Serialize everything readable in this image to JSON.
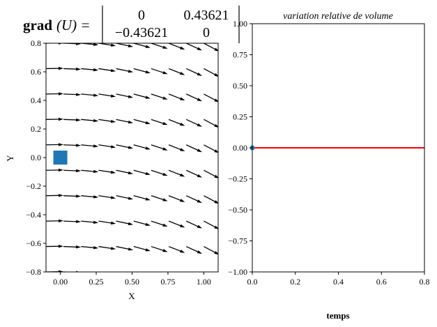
{
  "chart_data": [
    {
      "type": "quiver",
      "title": {
        "lhs_bold": "grad",
        "lhs_rest": "(U) =",
        "matrix": [
          [
            "0",
            "0.43621"
          ],
          [
            "−0.43621",
            "0"
          ]
        ]
      },
      "xlabel": "X",
      "ylabel": "Y",
      "xlim": [
        -0.1,
        1.1
      ],
      "ylim": [
        -0.8,
        0.8
      ],
      "xticks": [
        0.0,
        0.25,
        0.5,
        0.75,
        1.0
      ],
      "xtick_labels": [
        "0.00",
        "0.25",
        "0.50",
        "0.75",
        "1.00"
      ],
      "yticks": [
        -0.8,
        -0.6,
        -0.4,
        -0.2,
        0.0,
        0.2,
        0.4,
        0.6,
        0.8
      ],
      "ytick_labels": [
        "−0.8",
        "−0.6",
        "−0.4",
        "−0.2",
        "0.0",
        "0.2",
        "0.4",
        "0.6",
        "0.8"
      ],
      "grad_matrix": [
        [
          0,
          0.43621
        ],
        [
          -0.43621,
          0
        ]
      ],
      "marker": {
        "shape": "square",
        "x": 0.0,
        "y": 0.0,
        "color": "#1f77b4"
      },
      "arrow_color": "#000000",
      "grid": false
    },
    {
      "type": "line",
      "title": "variation relative de volume",
      "xlabel": "temps",
      "ylabel": "",
      "xlim": [
        0,
        0.8
      ],
      "ylim": [
        -1,
        1
      ],
      "xticks": [
        0,
        0.2,
        0.4,
        0.6,
        0.8
      ],
      "xtick_labels": [
        "0.0",
        "0.2",
        "0.4",
        "0.6",
        "0.8"
      ],
      "yticks": [
        -1,
        -0.75,
        -0.5,
        -0.25,
        0,
        0.25,
        0.5,
        0.75,
        1
      ],
      "ytick_labels": [
        "−1.00",
        "−0.75",
        "−0.50",
        "−0.25",
        "0.00",
        "0.25",
        "0.50",
        "0.75",
        "1.00"
      ],
      "series": [
        {
          "x": [
            0,
            0.8
          ],
          "y": [
            0,
            0
          ],
          "color": "#ff0000"
        }
      ],
      "points": [
        {
          "x": 0,
          "y": 0,
          "color": "#1f77b4"
        }
      ],
      "grid": false
    }
  ]
}
